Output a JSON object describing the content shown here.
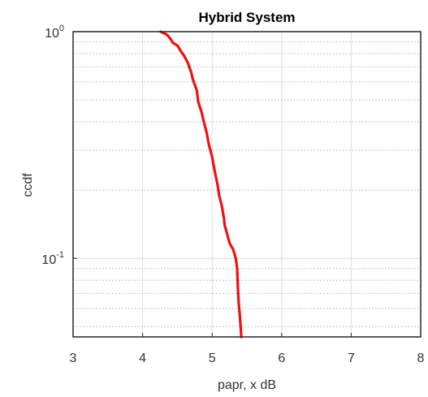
{
  "chart_data": {
    "type": "line",
    "title": "Hybrid System",
    "xlabel": "papr, x dB",
    "ylabel": "ccdf",
    "xlim": [
      3,
      8
    ],
    "ylim": [
      0.045,
      1.0
    ],
    "yscale": "log",
    "grid": true,
    "x_ticks": [
      3,
      4,
      5,
      6,
      7,
      8
    ],
    "y_ticks": [
      {
        "value": 1.0,
        "base": "10",
        "exp": "0"
      },
      {
        "value": 0.1,
        "base": "10",
        "exp": "-1"
      }
    ],
    "colors": {
      "series": "#ee1111",
      "major_grid": "#dcdcdc",
      "minor_grid": "#b4b4b4",
      "axes": "#262626"
    },
    "series": [
      {
        "x": [
          4.26,
          4.35,
          4.4,
          4.44,
          4.5,
          4.53,
          4.55,
          4.6,
          4.65,
          4.7,
          4.72,
          4.78,
          4.8,
          4.85,
          4.88,
          4.92,
          4.95,
          5.0,
          5.04,
          5.08,
          5.1,
          5.14,
          5.17,
          5.18,
          5.21,
          5.24,
          5.26,
          5.3,
          5.32,
          5.34,
          5.36,
          5.37,
          5.38,
          5.4,
          5.42
        ],
        "y": [
          1.0,
          0.97,
          0.93,
          0.89,
          0.87,
          0.84,
          0.82,
          0.78,
          0.73,
          0.66,
          0.62,
          0.55,
          0.49,
          0.44,
          0.4,
          0.36,
          0.32,
          0.28,
          0.24,
          0.21,
          0.19,
          0.17,
          0.15,
          0.14,
          0.13,
          0.12,
          0.115,
          0.11,
          0.105,
          0.1,
          0.09,
          0.075,
          0.065,
          0.055,
          0.045
        ]
      }
    ]
  }
}
